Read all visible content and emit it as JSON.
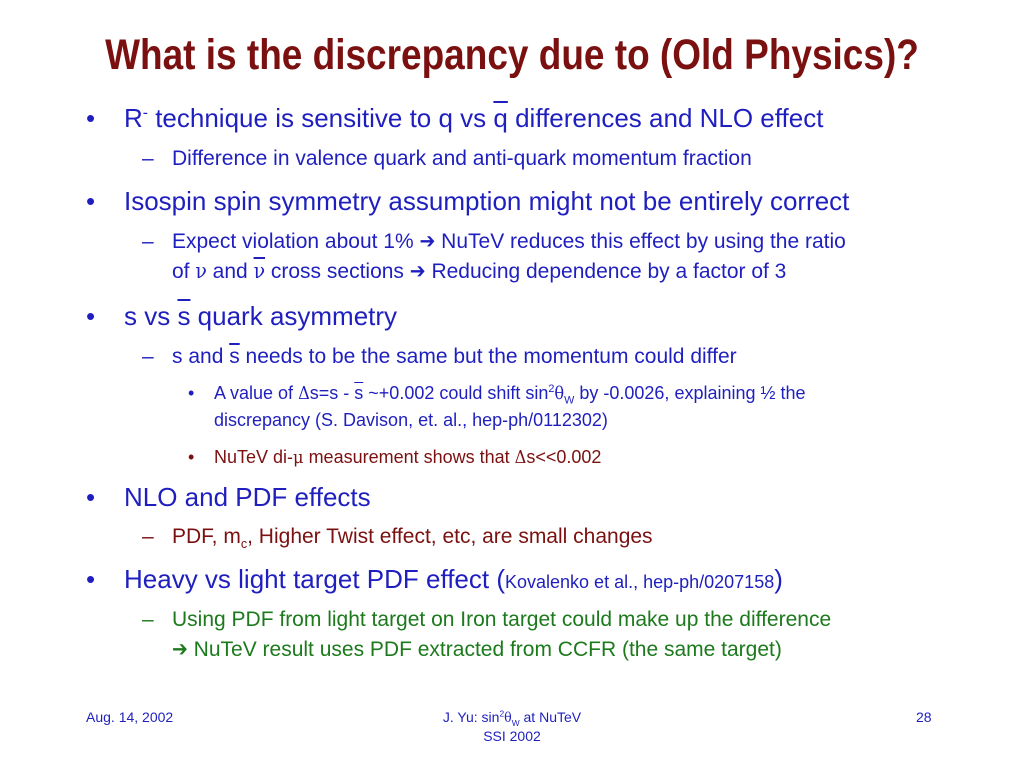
{
  "title": "What is the discrepancy due to (Old Physics)?",
  "bullets": {
    "b1": {
      "pre": "R",
      "sup": "-",
      "mid": " technique is sensitive to q vs ",
      "qbar": "q",
      "post": " differences and NLO effect",
      "sub1": "Difference in valence quark and anti-quark momentum fraction"
    },
    "b2": {
      "text": "Isospin spin symmetry assumption might not be entirely correct",
      "sub_line1_a": "Expect violation about 1% ",
      "arrow": "➔",
      "sub_line1_b": " NuTeV reduces this effect by using the ratio",
      "sub_line2_a": "of ",
      "nu": "ν",
      "sub_line2_b": " and ",
      "nubar": "ν",
      "sub_line2_c": " cross sections ",
      "sub_line2_d": " Reducing dependence by a factor of 3"
    },
    "b3": {
      "pre": "s vs ",
      "sbar": "s",
      "post": " quark asymmetry",
      "sub1_a": "s and ",
      "sub1_sbar": "s",
      "sub1_b": " needs to be the same but the momentum could differ",
      "subsub1_a": "A value of ",
      "delta": "Δ",
      "subsub1_b": "s=s - ",
      "subsub1_sbar": "s",
      "subsub1_c": " ~+0.002 could shift sin",
      "two": "2",
      "theta": "θ",
      "w": "W",
      "subsub1_d": " by -0.0026, explaining ½ the",
      "subsub1_line2": "discrepancy (S. Davison, et. al., hep-ph/0112302)",
      "subsub2_a": "NuTeV di-",
      "mu": "μ",
      "subsub2_b": " measurement shows that ",
      "subsub2_c": "s<<0.002"
    },
    "b4": {
      "text": "NLO and PDF effects",
      "sub1_a": "PDF, m",
      "sub1_c": "c",
      "sub1_b": ", Higher Twist effect, etc, are small changes"
    },
    "b5": {
      "pre": "Heavy vs light target PDF effect (",
      "ref": "Kovalenko et al., hep-ph/0207158",
      "post": ")",
      "sub1_line1": "Using PDF from light target on Iron target could make up the difference",
      "sub1_line2": " NuTeV result uses PDF extracted from CCFR (the same target)"
    }
  },
  "markers": {
    "bullet": "•",
    "dash": "–"
  },
  "footer": {
    "date": "Aug. 14, 2002",
    "center_line1_a": "J. Yu: sin",
    "center_two": "2",
    "center_theta": "θ",
    "center_w": "W",
    "center_line1_b": " at NuTeV",
    "center_line2": "SSI 2002",
    "page": "28"
  },
  "colors": {
    "title": "#7b1010",
    "body": "#1f1fbf",
    "red": "#7b1010",
    "green": "#1c7a1c"
  }
}
